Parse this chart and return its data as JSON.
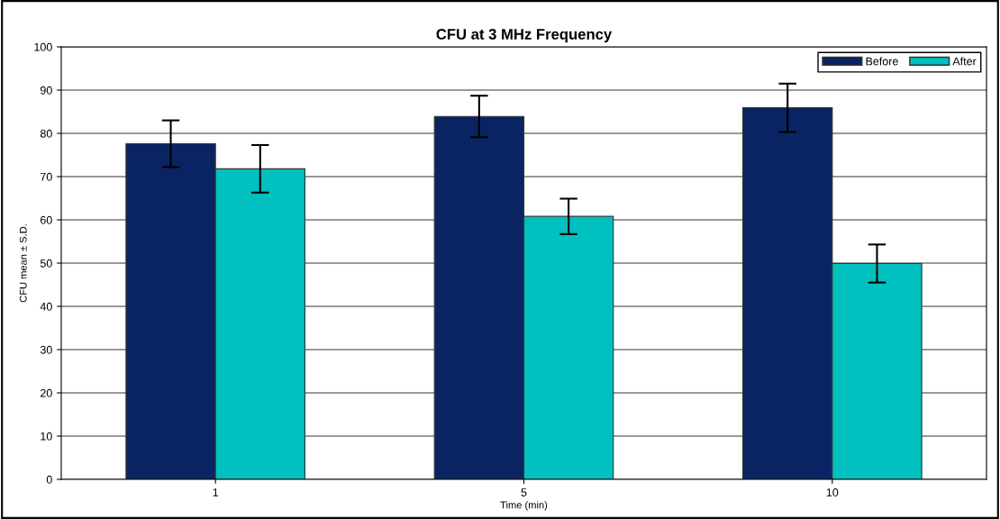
{
  "chart_data": {
    "type": "bar",
    "title": "CFU at 3 MHz Frequency",
    "xlabel": "Time (min)",
    "ylabel": "CFU mean ± S.D.",
    "categories": [
      "1",
      "5",
      "10"
    ],
    "series": [
      {
        "name": "Before",
        "color": "#0a2463",
        "values": [
          77.6,
          83.9,
          85.9
        ],
        "errors": [
          5.4,
          4.8,
          5.6
        ]
      },
      {
        "name": "After",
        "color": "#00c0c0",
        "values": [
          71.8,
          60.8,
          49.9
        ],
        "errors": [
          5.5,
          4.1,
          4.4
        ]
      }
    ],
    "ylim": [
      0,
      100
    ],
    "yticks": [
      0,
      10,
      20,
      30,
      40,
      50,
      60,
      70,
      80,
      90,
      100
    ],
    "grid": "y",
    "legend": "top right"
  }
}
